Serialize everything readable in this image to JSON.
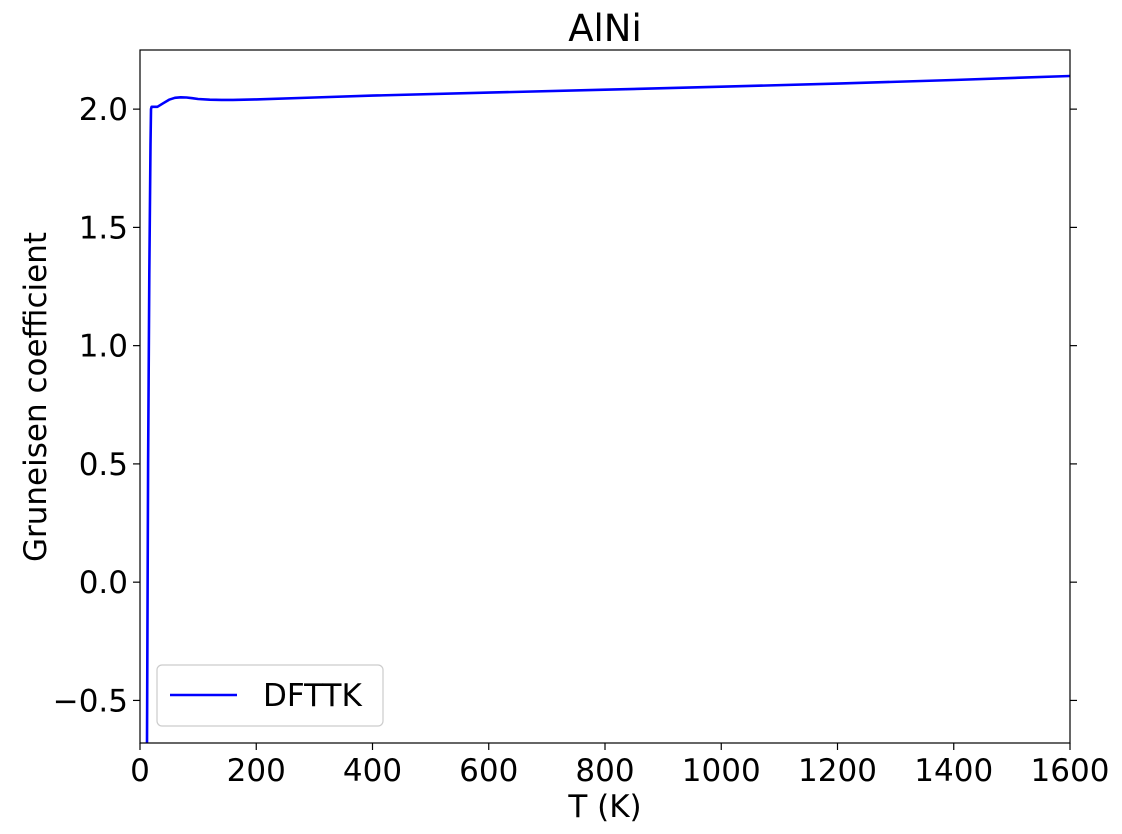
{
  "chart_data": {
    "type": "line",
    "title": "AlNi",
    "xlabel": "T (K)",
    "ylabel": "Gruneisen coefficient",
    "xlim": [
      0,
      1600
    ],
    "ylim": [
      -0.68,
      2.25
    ],
    "xticks": [
      0,
      200,
      400,
      600,
      800,
      1000,
      1200,
      1400,
      1600
    ],
    "yticks": [
      -0.5,
      0.0,
      0.5,
      1.0,
      1.5,
      2.0
    ],
    "xtick_labels": [
      "0",
      "200",
      "400",
      "600",
      "800",
      "1000",
      "1200",
      "1400",
      "1600"
    ],
    "ytick_labels": [
      "−0.5",
      "0.0",
      "0.5",
      "1.0",
      "1.5",
      "2.0"
    ],
    "grid": false,
    "legend": {
      "placement": "lower-left",
      "entries": [
        "DFTTK"
      ]
    },
    "series": [
      {
        "name": "DFTTK",
        "color": "#0000ff",
        "x": [
          12,
          14,
          16,
          18,
          19,
          20,
          24,
          30,
          40,
          50,
          60,
          70,
          80,
          90,
          100,
          120,
          140,
          160,
          200,
          300,
          400,
          600,
          800,
          1000,
          1200,
          1400,
          1600
        ],
        "y": [
          -0.68,
          0.5,
          1.3,
          1.85,
          2.0,
          2.01,
          2.01,
          2.01,
          2.025,
          2.04,
          2.048,
          2.05,
          2.049,
          2.046,
          2.043,
          2.04,
          2.039,
          2.039,
          2.041,
          2.049,
          2.057,
          2.07,
          2.082,
          2.095,
          2.108,
          2.123,
          2.14
        ]
      }
    ]
  }
}
